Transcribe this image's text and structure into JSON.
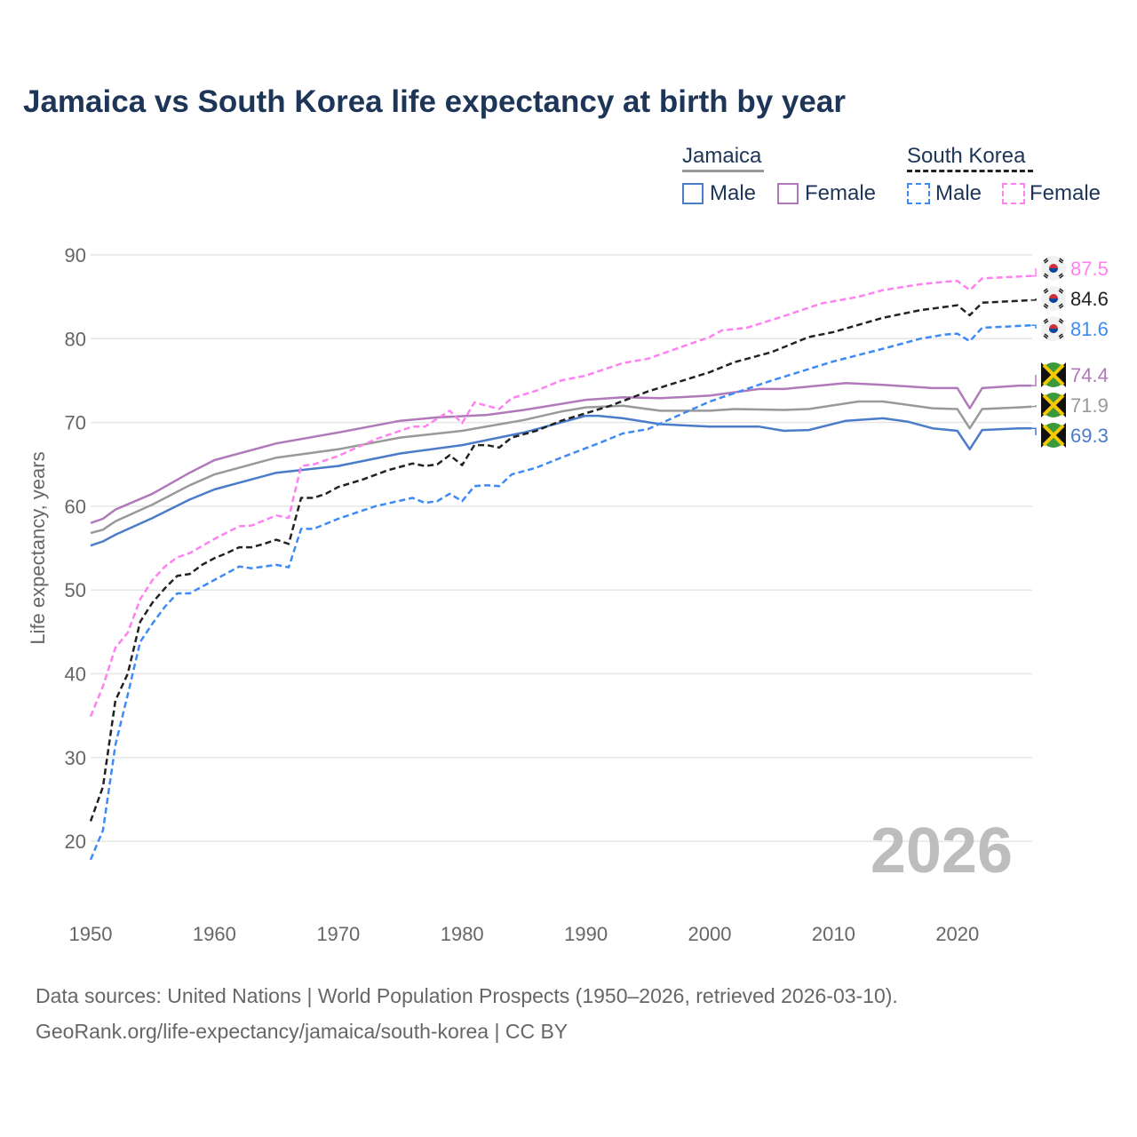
{
  "chart_data": {
    "type": "line",
    "title": "Jamaica vs South Korea life expectancy at birth by year",
    "xlabel": "",
    "ylabel": "Life expectancy, years",
    "xlim": [
      1950,
      2026
    ],
    "ylim": [
      15,
      95
    ],
    "x_ticks": [
      1950,
      1960,
      1970,
      1980,
      1990,
      2000,
      2010,
      2020
    ],
    "y_ticks": [
      20,
      30,
      40,
      50,
      60,
      70,
      80,
      90
    ],
    "grid": true,
    "watermark_year": "2026",
    "legend": {
      "placement": "top-right",
      "groups": [
        {
          "name": "Jamaica",
          "items": [
            "Male",
            "Female"
          ]
        },
        {
          "name": "South Korea",
          "items": [
            "Male",
            "Female"
          ]
        }
      ]
    },
    "series": [
      {
        "name": "Jamaica Female",
        "color": "#b07aba",
        "dash": false,
        "flag": "jamaica-flag",
        "end_label": "74.4",
        "points": [
          [
            1950,
            58.0
          ],
          [
            1951,
            58.5
          ],
          [
            1952,
            59.6
          ],
          [
            1955,
            61.5
          ],
          [
            1958,
            64.0
          ],
          [
            1960,
            65.5
          ],
          [
            1965,
            67.5
          ],
          [
            1970,
            68.8
          ],
          [
            1975,
            70.2
          ],
          [
            1978,
            70.6
          ],
          [
            1982,
            70.9
          ],
          [
            1985,
            71.5
          ],
          [
            1990,
            72.7
          ],
          [
            1993,
            73.0
          ],
          [
            1996,
            72.9
          ],
          [
            2000,
            73.2
          ],
          [
            2004,
            74.0
          ],
          [
            2006,
            74.0
          ],
          [
            2011,
            74.7
          ],
          [
            2014,
            74.5
          ],
          [
            2018,
            74.1
          ],
          [
            2020,
            74.1
          ],
          [
            2021,
            71.7
          ],
          [
            2022,
            74.1
          ],
          [
            2025,
            74.4
          ],
          [
            2026,
            74.4
          ]
        ]
      },
      {
        "name": "Jamaica",
        "color": "#999999",
        "dash": false,
        "flag": "jamaica-flag",
        "end_label": "71.9",
        "points": [
          [
            1950,
            56.8
          ],
          [
            1951,
            57.2
          ],
          [
            1952,
            58.2
          ],
          [
            1955,
            60.2
          ],
          [
            1958,
            62.5
          ],
          [
            1960,
            63.8
          ],
          [
            1965,
            65.8
          ],
          [
            1970,
            66.8
          ],
          [
            1975,
            68.2
          ],
          [
            1980,
            69.0
          ],
          [
            1985,
            70.3
          ],
          [
            1988,
            71.3
          ],
          [
            1990,
            71.8
          ],
          [
            1993,
            72.0
          ],
          [
            1996,
            71.4
          ],
          [
            2000,
            71.4
          ],
          [
            2002,
            71.6
          ],
          [
            2006,
            71.5
          ],
          [
            2008,
            71.6
          ],
          [
            2012,
            72.5
          ],
          [
            2014,
            72.5
          ],
          [
            2018,
            71.7
          ],
          [
            2020,
            71.6
          ],
          [
            2021,
            69.3
          ],
          [
            2022,
            71.6
          ],
          [
            2025,
            71.8
          ],
          [
            2026,
            71.9
          ]
        ]
      },
      {
        "name": "Jamaica Male",
        "color": "#4a7cc9",
        "dash": false,
        "flag": "jamaica-flag",
        "end_label": "69.3",
        "points": [
          [
            1950,
            55.3
          ],
          [
            1951,
            55.8
          ],
          [
            1952,
            56.6
          ],
          [
            1955,
            58.6
          ],
          [
            1958,
            60.8
          ],
          [
            1960,
            62.0
          ],
          [
            1965,
            64.0
          ],
          [
            1970,
            64.8
          ],
          [
            1975,
            66.3
          ],
          [
            1980,
            67.3
          ],
          [
            1985,
            68.8
          ],
          [
            1988,
            70.0
          ],
          [
            1990,
            70.8
          ],
          [
            1991,
            70.8
          ],
          [
            1993,
            70.5
          ],
          [
            1996,
            69.8
          ],
          [
            2000,
            69.5
          ],
          [
            2004,
            69.5
          ],
          [
            2006,
            69.0
          ],
          [
            2008,
            69.1
          ],
          [
            2011,
            70.2
          ],
          [
            2014,
            70.5
          ],
          [
            2016,
            70.1
          ],
          [
            2018,
            69.3
          ],
          [
            2020,
            69.0
          ],
          [
            2021,
            66.8
          ],
          [
            2022,
            69.1
          ],
          [
            2025,
            69.3
          ],
          [
            2026,
            69.3
          ]
        ]
      },
      {
        "name": "South Korea Female",
        "color": "#ff80f0",
        "dash": true,
        "flag": "south-korea-flag",
        "end_label": "87.5",
        "points": [
          [
            1950,
            34.9
          ],
          [
            1951,
            38.5
          ],
          [
            1952,
            43.1
          ],
          [
            1953,
            44.9
          ],
          [
            1954,
            48.9
          ],
          [
            1955,
            51.2
          ],
          [
            1956,
            52.8
          ],
          [
            1957,
            53.9
          ],
          [
            1958,
            54.4
          ],
          [
            1960,
            56.1
          ],
          [
            1962,
            57.6
          ],
          [
            1963,
            57.7
          ],
          [
            1965,
            58.9
          ],
          [
            1966,
            58.6
          ],
          [
            1967,
            64.8
          ],
          [
            1968,
            65.0
          ],
          [
            1970,
            66.0
          ],
          [
            1973,
            68.0
          ],
          [
            1976,
            69.5
          ],
          [
            1977,
            69.5
          ],
          [
            1979,
            71.4
          ],
          [
            1980,
            69.9
          ],
          [
            1981,
            72.4
          ],
          [
            1983,
            71.6
          ],
          [
            1984,
            72.9
          ],
          [
            1986,
            73.8
          ],
          [
            1988,
            75.0
          ],
          [
            1990,
            75.6
          ],
          [
            1993,
            77.1
          ],
          [
            1995,
            77.6
          ],
          [
            2000,
            80.2
          ],
          [
            2001,
            81.0
          ],
          [
            2003,
            81.3
          ],
          [
            2006,
            82.7
          ],
          [
            2009,
            84.2
          ],
          [
            2012,
            85.0
          ],
          [
            2014,
            85.8
          ],
          [
            2017,
            86.5
          ],
          [
            2019,
            86.8
          ],
          [
            2020,
            86.9
          ],
          [
            2021,
            85.8
          ],
          [
            2022,
            87.2
          ],
          [
            2026,
            87.5
          ]
        ]
      },
      {
        "name": "South Korea",
        "color": "#222222",
        "dash": true,
        "flag": "south-korea-flag",
        "end_label": "84.6",
        "points": [
          [
            1950,
            22.4
          ],
          [
            1951,
            26.5
          ],
          [
            1952,
            36.8
          ],
          [
            1953,
            40.0
          ],
          [
            1954,
            46.2
          ],
          [
            1955,
            48.5
          ],
          [
            1956,
            50.2
          ],
          [
            1957,
            51.7
          ],
          [
            1958,
            51.9
          ],
          [
            1959,
            53.0
          ],
          [
            1960,
            53.8
          ],
          [
            1961,
            54.4
          ],
          [
            1962,
            55.1
          ],
          [
            1963,
            55.1
          ],
          [
            1964,
            55.5
          ],
          [
            1965,
            56.0
          ],
          [
            1966,
            55.5
          ],
          [
            1967,
            61.0
          ],
          [
            1968,
            61.0
          ],
          [
            1969,
            61.5
          ],
          [
            1970,
            62.3
          ],
          [
            1972,
            63.2
          ],
          [
            1974,
            64.3
          ],
          [
            1976,
            65.1
          ],
          [
            1977,
            64.8
          ],
          [
            1978,
            65.0
          ],
          [
            1979,
            66.1
          ],
          [
            1980,
            64.9
          ],
          [
            1981,
            67.3
          ],
          [
            1982,
            67.3
          ],
          [
            1983,
            67.0
          ],
          [
            1984,
            68.2
          ],
          [
            1986,
            69.0
          ],
          [
            1988,
            70.2
          ],
          [
            1990,
            71.1
          ],
          [
            1992,
            72.0
          ],
          [
            1995,
            73.7
          ],
          [
            2000,
            76.0
          ],
          [
            2002,
            77.2
          ],
          [
            2005,
            78.4
          ],
          [
            2008,
            80.2
          ],
          [
            2010,
            80.8
          ],
          [
            2014,
            82.5
          ],
          [
            2017,
            83.4
          ],
          [
            2019,
            83.8
          ],
          [
            2020,
            84.0
          ],
          [
            2021,
            82.8
          ],
          [
            2022,
            84.3
          ],
          [
            2026,
            84.6
          ]
        ]
      },
      {
        "name": "South Korea Male",
        "color": "#3d8af7",
        "dash": true,
        "flag": "south-korea-flag",
        "end_label": "81.6",
        "points": [
          [
            1950,
            17.8
          ],
          [
            1951,
            21.3
          ],
          [
            1952,
            31.5
          ],
          [
            1953,
            37.5
          ],
          [
            1954,
            43.8
          ],
          [
            1955,
            46.0
          ],
          [
            1956,
            48.0
          ],
          [
            1957,
            49.6
          ],
          [
            1958,
            49.6
          ],
          [
            1960,
            51.2
          ],
          [
            1962,
            52.8
          ],
          [
            1963,
            52.6
          ],
          [
            1965,
            53.0
          ],
          [
            1966,
            52.7
          ],
          [
            1967,
            57.3
          ],
          [
            1968,
            57.3
          ],
          [
            1970,
            58.5
          ],
          [
            1973,
            60.0
          ],
          [
            1976,
            61.0
          ],
          [
            1977,
            60.4
          ],
          [
            1978,
            60.6
          ],
          [
            1979,
            61.5
          ],
          [
            1980,
            60.6
          ],
          [
            1981,
            62.4
          ],
          [
            1982,
            62.5
          ],
          [
            1983,
            62.4
          ],
          [
            1984,
            63.8
          ],
          [
            1986,
            64.6
          ],
          [
            1988,
            65.8
          ],
          [
            1991,
            67.5
          ],
          [
            1993,
            68.7
          ],
          [
            1995,
            69.2
          ],
          [
            2000,
            72.5
          ],
          [
            2005,
            75.0
          ],
          [
            2010,
            77.3
          ],
          [
            2014,
            78.8
          ],
          [
            2017,
            80.0
          ],
          [
            2019,
            80.5
          ],
          [
            2020,
            80.6
          ],
          [
            2021,
            79.7
          ],
          [
            2022,
            81.3
          ],
          [
            2026,
            81.6
          ]
        ]
      }
    ]
  },
  "legend": {
    "jamaica": "Jamaica",
    "south_korea": "South Korea",
    "male": "Male",
    "female": "Female"
  },
  "footer": {
    "line1": "Data sources: United Nations | World Population Prospects (1950–2026, retrieved 2026-03-10).",
    "line2": "GeoRank.org/life-expectancy/jamaica/south-korea | CC BY"
  }
}
